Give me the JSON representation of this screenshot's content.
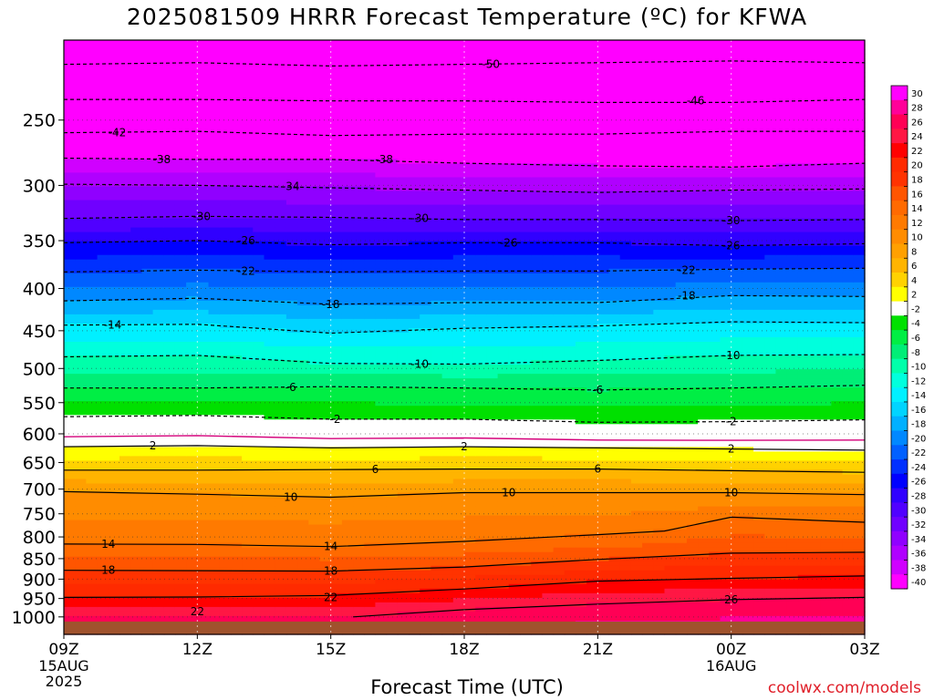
{
  "title": "2025081509 HRRR Forecast Temperature (ºC) for KFWA",
  "credit": "coolwx.com/models",
  "chart_data": {
    "type": "heatmap",
    "xlabel": "Forecast Time (UTC)",
    "ylabel": "",
    "x_ticks": [
      "09Z",
      "12Z",
      "15Z",
      "18Z",
      "21Z",
      "00Z",
      "03Z"
    ],
    "x_sub_labels": [
      [
        "15AUG",
        "2025"
      ],
      [],
      [],
      [],
      [],
      [
        "16AUG"
      ],
      []
    ],
    "x_range_hours": [
      0,
      18
    ],
    "y_ticks": [
      250,
      300,
      350,
      400,
      450,
      500,
      550,
      600,
      650,
      700,
      750,
      800,
      850,
      900,
      950,
      1000
    ],
    "y_range_hPa": [
      200,
      1050
    ],
    "colorbar_levels": [
      30,
      28,
      26,
      24,
      22,
      20,
      18,
      16,
      14,
      12,
      10,
      8,
      6,
      4,
      2,
      -2,
      -4,
      -6,
      -8,
      -10,
      -12,
      -14,
      -16,
      -18,
      -20,
      -22,
      -24,
      -26,
      -28,
      -30,
      -32,
      -34,
      -36,
      -38,
      -40
    ],
    "colorbar_colors": [
      "#ff00ff",
      "#ff0099",
      "#ff0055",
      "#ff1744",
      "#ff0000",
      "#ff2a00",
      "#ff3300",
      "#ff5500",
      "#ff6a00",
      "#ff7a00",
      "#ff8c00",
      "#ffa000",
      "#ffb400",
      "#ffd200",
      "#ffff00",
      "#ffffff",
      "#00e000",
      "#00ee44",
      "#00ee77",
      "#00ffaa",
      "#00ffdd",
      "#00f0ff",
      "#00d4ff",
      "#00b0ff",
      "#0088ff",
      "#0060ff",
      "#0030ff",
      "#0000ff",
      "#3000ff",
      "#5000ff",
      "#7000ff",
      "#9000ff",
      "#b000ff",
      "#d000ff",
      "#ff00ff"
    ],
    "ground_color": "#a0522d",
    "series": [
      {
        "values": [
          [
            0,
            214
          ],
          [
            3,
            213
          ],
          [
            6,
            215
          ],
          [
            9,
            214
          ],
          [
            12,
            213
          ],
          [
            15,
            212
          ],
          [
            18,
            213
          ]
        ],
        "dashed": true,
        "label_positions": [
          [
            9.6,
            214
          ]
        ],
        "label": "-50"
      },
      {
        "values": [
          [
            0,
            236
          ],
          [
            3,
            236
          ],
          [
            6,
            237
          ],
          [
            9,
            237
          ],
          [
            12,
            238
          ],
          [
            15,
            238
          ],
          [
            18,
            236
          ]
        ],
        "dashed": true,
        "label_positions": [
          [
            14.2,
            237
          ]
        ],
        "label": "-46"
      },
      {
        "values": [
          [
            0,
            259
          ],
          [
            3,
            258
          ],
          [
            6,
            261
          ],
          [
            9,
            260
          ],
          [
            12,
            260
          ],
          [
            15,
            258
          ],
          [
            18,
            258
          ]
        ],
        "dashed": true,
        "label_positions": [
          [
            1.2,
            259
          ]
        ],
        "label": "-42"
      },
      {
        "values": [
          [
            0,
            278
          ],
          [
            3,
            279
          ],
          [
            6,
            279
          ],
          [
            9,
            282
          ],
          [
            12,
            284
          ],
          [
            15,
            285
          ],
          [
            18,
            282
          ]
        ],
        "dashed": true,
        "label_positions": [
          [
            2.2,
            279
          ],
          [
            7.2,
            279
          ]
        ],
        "label": "-38"
      },
      {
        "values": [
          [
            0,
            299
          ],
          [
            3,
            300
          ],
          [
            6,
            302
          ],
          [
            9,
            304
          ],
          [
            12,
            306
          ],
          [
            15,
            304
          ],
          [
            18,
            303
          ]
        ],
        "dashed": true,
        "label_positions": [
          [
            5.1,
            301
          ]
        ],
        "label": "-34"
      },
      {
        "values": [
          [
            0,
            329
          ],
          [
            3,
            327
          ],
          [
            6,
            328
          ],
          [
            9,
            330
          ],
          [
            12,
            330
          ],
          [
            15,
            331
          ],
          [
            18,
            330
          ]
        ],
        "dashed": true,
        "label_positions": [
          [
            3.1,
            327
          ],
          [
            8.0,
            329
          ],
          [
            15.0,
            331
          ]
        ],
        "label": "-30"
      },
      {
        "values": [
          [
            0,
            352
          ],
          [
            3,
            350
          ],
          [
            6,
            354
          ],
          [
            9,
            352
          ],
          [
            12,
            352
          ],
          [
            15,
            355
          ],
          [
            18,
            353
          ]
        ],
        "dashed": true,
        "label_positions": [
          [
            4.1,
            350
          ],
          [
            10.0,
            352
          ],
          [
            15.0,
            355
          ]
        ],
        "label": "-26"
      },
      {
        "values": [
          [
            0,
            382
          ],
          [
            3,
            380
          ],
          [
            6,
            382
          ],
          [
            9,
            381
          ],
          [
            12,
            381
          ],
          [
            15,
            379
          ],
          [
            18,
            378
          ]
        ],
        "dashed": true,
        "label_positions": [
          [
            4.1,
            381
          ],
          [
            14.0,
            380
          ]
        ],
        "label": "-22"
      },
      {
        "values": [
          [
            0,
            414
          ],
          [
            3,
            411
          ],
          [
            6,
            418
          ],
          [
            9,
            416
          ],
          [
            12,
            416
          ],
          [
            15,
            408
          ],
          [
            18,
            409
          ]
        ],
        "dashed": true,
        "label_positions": [
          [
            6.0,
            418
          ],
          [
            14.0,
            408
          ]
        ],
        "label": "-18"
      },
      {
        "values": [
          [
            0,
            443
          ],
          [
            3,
            442
          ],
          [
            6,
            453
          ],
          [
            9,
            447
          ],
          [
            12,
            444
          ],
          [
            15,
            439
          ],
          [
            18,
            440
          ]
        ],
        "dashed": true,
        "label_positions": [
          [
            1.1,
            443
          ]
        ],
        "label": "-14"
      },
      {
        "values": [
          [
            0,
            484
          ],
          [
            3,
            482
          ],
          [
            6,
            493
          ],
          [
            9,
            494
          ],
          [
            12,
            489
          ],
          [
            15,
            482
          ],
          [
            18,
            481
          ]
        ],
        "dashed": true,
        "label_positions": [
          [
            8.0,
            494
          ],
          [
            15.0,
            482
          ]
        ],
        "label": "-10"
      },
      {
        "values": [
          [
            0,
            528
          ],
          [
            3,
            528
          ],
          [
            6,
            526
          ],
          [
            9,
            528
          ],
          [
            12,
            531
          ],
          [
            15,
            528
          ],
          [
            18,
            524
          ]
        ],
        "dashed": true,
        "label_positions": [
          [
            5.1,
            527
          ],
          [
            12.0,
            531
          ]
        ],
        "label": "-6"
      },
      {
        "values": [
          [
            0,
            572
          ],
          [
            3,
            570
          ],
          [
            6,
            576
          ],
          [
            9,
            576
          ],
          [
            12,
            581
          ],
          [
            15,
            580
          ],
          [
            18,
            577
          ]
        ],
        "dashed": true,
        "label_positions": [
          [
            6.1,
            576
          ],
          [
            15.0,
            580
          ]
        ],
        "label": "-2"
      },
      {
        "values": [
          [
            0,
            622
          ],
          [
            3,
            620
          ],
          [
            6,
            624
          ],
          [
            9,
            622
          ],
          [
            12,
            624
          ],
          [
            15,
            626
          ],
          [
            18,
            628
          ]
        ],
        "dashed": false,
        "label_positions": [
          [
            2.0,
            620
          ],
          [
            9.0,
            622
          ],
          [
            15.0,
            626
          ]
        ],
        "label": "2"
      },
      {
        "values": [
          [
            0,
            664
          ],
          [
            3,
            664
          ],
          [
            6,
            663
          ],
          [
            9,
            662
          ],
          [
            12,
            662
          ],
          [
            15,
            665
          ],
          [
            18,
            668
          ]
        ],
        "dashed": false,
        "label_positions": [
          [
            7.0,
            663
          ],
          [
            12.0,
            662
          ]
        ],
        "label": "6"
      },
      {
        "values": [
          [
            0,
            705
          ],
          [
            3,
            710
          ],
          [
            6,
            716
          ],
          [
            9,
            707
          ],
          [
            12,
            707
          ],
          [
            15,
            707
          ],
          [
            18,
            711
          ]
        ],
        "dashed": false,
        "label_positions": [
          [
            5.1,
            716
          ],
          [
            10.0,
            707
          ],
          [
            15.0,
            707
          ]
        ],
        "label": "10"
      },
      {
        "values": [
          [
            0,
            816
          ],
          [
            3,
            817
          ],
          [
            6,
            822
          ],
          [
            9,
            810
          ],
          [
            12,
            795
          ],
          [
            13.5,
            787
          ],
          [
            15,
            757
          ],
          [
            18,
            768
          ]
        ],
        "dashed": false,
        "label_positions": [
          [
            1.0,
            816
          ],
          [
            6.0,
            822
          ]
        ],
        "label": "14"
      },
      {
        "values": [
          [
            0,
            878
          ],
          [
            3,
            879
          ],
          [
            6,
            880
          ],
          [
            9,
            870
          ],
          [
            12,
            852
          ],
          [
            15,
            837
          ],
          [
            18,
            835
          ]
        ],
        "dashed": false,
        "label_positions": [
          [
            1.0,
            878
          ],
          [
            6.0,
            880
          ]
        ],
        "label": "18"
      },
      {
        "values": [
          [
            0,
            947
          ],
          [
            3,
            946
          ],
          [
            6,
            942
          ],
          [
            9,
            925
          ],
          [
            12,
            905
          ],
          [
            15,
            898
          ],
          [
            18,
            892
          ]
        ],
        "dashed": false,
        "label_positions": [
          [
            3.0,
            985
          ],
          [
            6.0,
            947
          ]
        ],
        "label": "22"
      },
      {
        "values": [
          [
            6.5,
            1000
          ],
          [
            9,
            980
          ],
          [
            12,
            965
          ],
          [
            15,
            953
          ],
          [
            18,
            947
          ]
        ],
        "dashed": false,
        "label_positions": [
          [
            15.0,
            953
          ]
        ],
        "label": "26"
      }
    ]
  }
}
